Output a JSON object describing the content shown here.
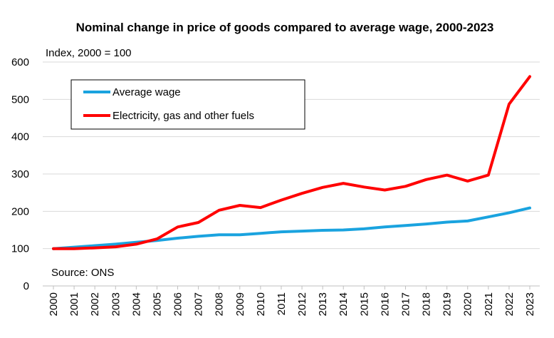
{
  "chart_data": {
    "type": "line",
    "title": "Nominal change in price of goods compared to average wage, 2000-2023",
    "unit_label": "Index, 2000 = 100",
    "source": "Source: ONS",
    "ylim": [
      0,
      600
    ],
    "y_ticks": [
      "0",
      "100",
      "200",
      "300",
      "400",
      "500",
      "600"
    ],
    "x": [
      "2000",
      "2001",
      "2002",
      "2003",
      "2004",
      "2005",
      "2006",
      "2007",
      "2008",
      "2009",
      "2010",
      "2011",
      "2012",
      "2013",
      "2014",
      "2015",
      "2016",
      "2017",
      "2018",
      "2019",
      "2020",
      "2021",
      "2022",
      "2023"
    ],
    "grid": true,
    "legend_position": "top-left",
    "series": [
      {
        "name": "Average wage",
        "color": "#1aa3df",
        "values": [
          100,
          104,
          108,
          112,
          117,
          122,
          128,
          133,
          137,
          137,
          141,
          145,
          147,
          149,
          150,
          153,
          158,
          162,
          166,
          171,
          174,
          185,
          196,
          209
        ]
      },
      {
        "name": "Electricity, gas and other fuels",
        "color": "#ff0000",
        "values": [
          100,
          100,
          102,
          105,
          112,
          126,
          158,
          170,
          203,
          216,
          210,
          230,
          248,
          264,
          275,
          265,
          257,
          267,
          285,
          297,
          281,
          297,
          487,
          561
        ]
      }
    ]
  }
}
